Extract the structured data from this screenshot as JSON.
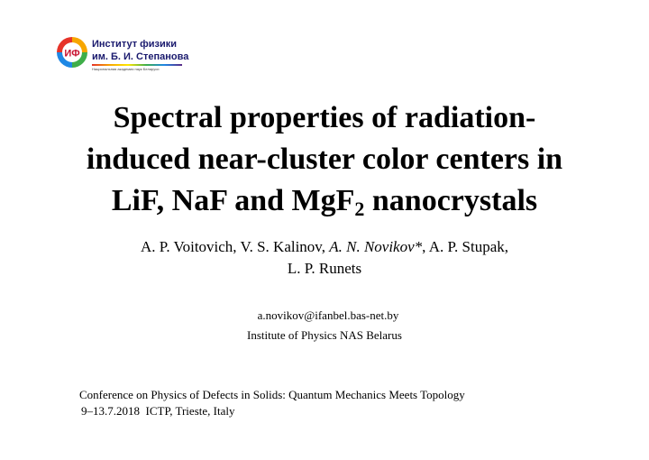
{
  "logo": {
    "line1": "Институт физики",
    "line2": "им. Б. И. Степанова",
    "subline": "Национальная академия наук Беларуси",
    "mark_letters": "ИФ"
  },
  "title": {
    "line1": "Spectral properties of radiation-",
    "line2": "induced near-cluster color centers in",
    "line3_main": "LiF, NaF and MgF",
    "line3_sub": "2",
    "line3_tail": " nanocrystals"
  },
  "authors": {
    "a1": "A. P. Voitovich, V. S. Kalinov, ",
    "a2_italic": "A. N. Novikov*",
    "a3": ", A. P. Stupak,",
    "line2": "L. P. Runets"
  },
  "contact": {
    "email": "a.novikov@ifanbel.bas-net.by",
    "institute": "Institute of Physics NAS Belarus"
  },
  "conference": {
    "name": "Conference on Physics of Defects in Solids: Quantum Mechanics Meets Topology",
    "date_place": "9–13.7.2018  ICTP, Trieste, Italy"
  }
}
